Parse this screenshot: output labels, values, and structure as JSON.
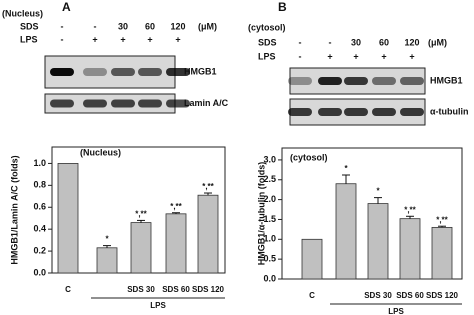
{
  "blots": [
    {
      "panel": "A",
      "compartment": "(Nucleus)",
      "rows": [
        {
          "name": "SDS",
          "values": [
            "-",
            "-",
            "30",
            "60",
            "120"
          ],
          "unit": "(μM)"
        },
        {
          "name": "LPS",
          "values": [
            "-",
            "+",
            "+",
            "+",
            "+"
          ]
        }
      ],
      "bands": [
        "HMGB1",
        "Lamin A/C"
      ]
    },
    {
      "panel": "B",
      "compartment": "(cytosol)",
      "rows": [
        {
          "name": "SDS",
          "values": [
            "-",
            "-",
            "30",
            "60",
            "120"
          ],
          "unit": "(μM)"
        },
        {
          "name": "LPS",
          "values": [
            "-",
            "+",
            "+",
            "+",
            "+"
          ]
        }
      ],
      "bands": [
        "HMGB1",
        "α-tubulin"
      ]
    }
  ],
  "chart_data": [
    {
      "type": "bar",
      "title": "(Nucleus)",
      "y_label": "HMGB1/Lamin A/C (folds)",
      "categories": [
        "C",
        null,
        "SDS 30",
        "SDS 60",
        "SDS 120"
      ],
      "group_label": "LPS",
      "values": [
        1.0,
        0.23,
        0.46,
        0.54,
        0.71
      ],
      "errors": [
        null,
        0.02,
        0.02,
        0.01,
        0.02
      ],
      "annotations": [
        null,
        "*",
        "*,**",
        "*,**",
        "*,**"
      ],
      "color": "#c0c0c0",
      "ylim": [
        0,
        1.15
      ],
      "yticks": [
        {
          "value": 0,
          "label": "0.0"
        },
        0.2,
        0.4,
        0.6,
        0.8,
        {
          "value": 1,
          "label": "1.0"
        }
      ]
    },
    {
      "type": "bar",
      "title": "(cytosol)",
      "y_label": "HMGB1/α-tubulin (folds)",
      "categories": [
        "C",
        null,
        "SDS 30",
        "SDS 60",
        "SDS 120"
      ],
      "group_label": "LPS",
      "values": [
        1.0,
        2.4,
        1.9,
        1.52,
        1.3
      ],
      "errors": [
        null,
        0.22,
        0.15,
        0.06,
        0.03
      ],
      "annotations": [
        null,
        "*",
        "*",
        "*,**",
        "*,**"
      ],
      "color": "#c0c0c0",
      "ylim": [
        0,
        3.3
      ],
      "yticks": [
        {
          "value": 0,
          "label": "0.0"
        },
        0.5,
        {
          "value": 1,
          "label": "1.0"
        },
        1.5,
        {
          "value": 2,
          "label": "2.0"
        },
        2.5,
        {
          "value": 3,
          "label": "3.0"
        }
      ]
    }
  ]
}
